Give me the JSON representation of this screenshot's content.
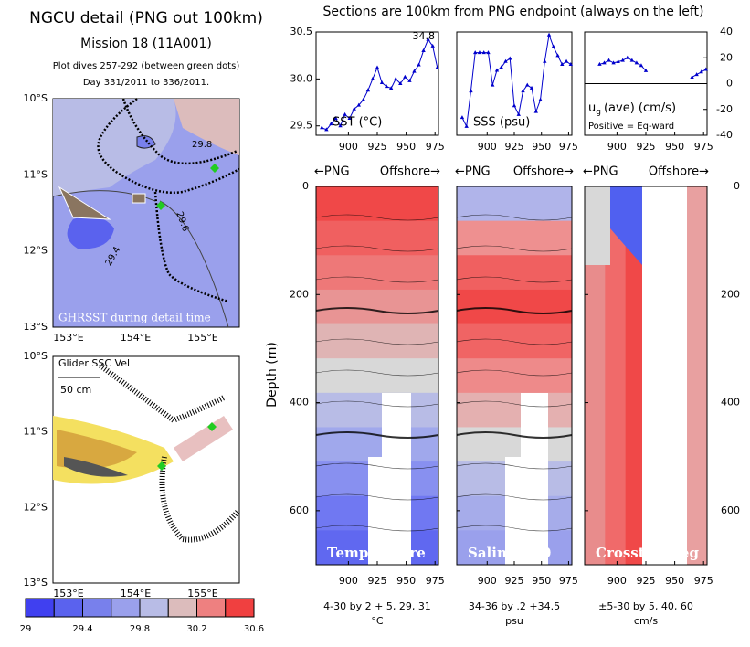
{
  "header": {
    "title": "NGCU detail (PNG out 100km)",
    "mission": "Mission 18 (11A001)",
    "dives": "Plot dives 257-292 (between green dots)",
    "days": "Day 331/2011 to 336/2011.",
    "section_title": "Sections are 100km from PNG endpoint (always on the left)"
  },
  "maps": {
    "lat_labels": [
      "10°S",
      "11°S",
      "12°S",
      "13°S"
    ],
    "lon_labels": [
      "153°E",
      "154°E",
      "155°E"
    ],
    "contour_labels": [
      "29.8",
      "29.6",
      "29.4"
    ],
    "sst_caption": "GHRSST during detail time",
    "vel_caption": "Glider SSC Vel",
    "vel_scale": "50 cm"
  },
  "colorbar": {
    "ticks": [
      29,
      29.4,
      29.8,
      30.2,
      30.6
    ],
    "colors": [
      "#4040f0",
      "#5a62ee",
      "#7880ec",
      "#9aa0ec",
      "#b8bce6",
      "#dcbcbc",
      "#ee8080",
      "#f04040"
    ]
  },
  "chart_data": [
    {
      "type": "line",
      "label": "SST (°C)",
      "annotation": "34.8",
      "color": "#0000cc",
      "x": [
        877,
        881,
        885,
        889,
        893,
        897,
        901,
        905,
        909,
        913,
        917,
        921,
        925,
        929,
        933,
        937,
        941,
        945,
        949,
        953,
        957,
        961,
        965,
        969,
        973,
        977
      ],
      "values": [
        29.48,
        29.46,
        29.52,
        29.58,
        29.5,
        29.62,
        29.58,
        29.68,
        29.72,
        29.78,
        29.88,
        30.0,
        30.12,
        29.96,
        29.92,
        29.9,
        30.0,
        29.95,
        30.02,
        29.98,
        30.08,
        30.15,
        30.3,
        30.42,
        30.35,
        30.12
      ],
      "xlim": [
        872,
        978
      ],
      "xticks": [
        900,
        925,
        950,
        975
      ],
      "ylim": [
        29.4,
        30.5
      ],
      "yticks": [
        29.5,
        {
          "value": 30,
          "label": "30.0"
        },
        30.5
      ],
      "yaxis": "left"
    },
    {
      "type": "line",
      "label": "SSS (psu)",
      "color": "#0000cc",
      "x": [
        877,
        881,
        885,
        889,
        893,
        897,
        901,
        905,
        909,
        913,
        917,
        921,
        925,
        929,
        933,
        937,
        941,
        945,
        949,
        953,
        957,
        961,
        965,
        969,
        973,
        977
      ],
      "values": [
        34.36,
        34.33,
        34.45,
        34.58,
        34.58,
        34.58,
        34.58,
        34.47,
        34.52,
        34.53,
        34.55,
        34.56,
        34.4,
        34.37,
        34.45,
        34.47,
        34.46,
        34.38,
        34.42,
        34.55,
        34.64,
        34.6,
        34.57,
        34.54,
        34.55,
        34.54
      ],
      "xlim": [
        872,
        978
      ],
      "xticks": [
        900,
        925,
        950,
        975
      ],
      "ylim": [
        34.3,
        34.65
      ],
      "yticks": [],
      "yaxis": "left"
    },
    {
      "type": "line",
      "label": "u",
      "label_sub": "g",
      "label_rest": "(ave) (cm/s)",
      "note": "Positive = Eq-ward",
      "color": "#0000cc",
      "x": [
        877,
        881,
        885,
        889,
        893,
        897,
        901,
        905,
        909,
        913,
        917,
        921,
        925,
        929,
        933,
        937,
        941,
        945,
        949,
        953,
        957,
        961,
        965,
        969,
        973,
        977
      ],
      "values": [
        null,
        null,
        15,
        16,
        18,
        16,
        17,
        18,
        20,
        18,
        16,
        14,
        10,
        null,
        null,
        null,
        null,
        null,
        null,
        null,
        null,
        null,
        5,
        7,
        9,
        11
      ],
      "xlim": [
        872,
        978
      ],
      "xticks": [
        900,
        925,
        950,
        975
      ],
      "ylim": [
        -40,
        40
      ],
      "yticks": [
        -40,
        -20,
        0,
        20,
        40
      ],
      "yaxis": "right"
    },
    {
      "type": "section",
      "head_left": "←PNG",
      "head_right": "Offshore→",
      "caption": "Temperature",
      "note": "4-30 by 2 + 5, 29, 31",
      "unit": "°C",
      "ylabel": "Depth (m)",
      "orientation": "horizontal",
      "colors": [
        "#f04848",
        "#f06060",
        "#ee7878",
        "#e89494",
        "#dfb4b4",
        "#d8d8d8",
        "#b8bce6",
        "#a0a8ec",
        "#8890f0",
        "#7078f2",
        "#6068f0"
      ],
      "xlim": [
        872,
        978
      ],
      "xticks": [
        900,
        925,
        950,
        975
      ],
      "ylim": [
        0,
        700
      ],
      "yticks": [
        0,
        200,
        400,
        600
      ],
      "yaxis": "left"
    },
    {
      "type": "section",
      "head_left": "←PNG",
      "head_right": "Offshore→",
      "caption": "Salinity-30",
      "note": "34-36 by .2 +34.5",
      "unit": "psu",
      "orientation": "horizontal",
      "colors": [
        "#b0b4ea",
        "#ee9090",
        "#f06060",
        "#f04848",
        "#f06464",
        "#ee8a8a",
        "#e4b0b0",
        "#d8d8d8",
        "#b8bce6",
        "#a6acea",
        "#9aa0ec"
      ],
      "xlim": [
        872,
        978
      ],
      "xticks": [
        900,
        925,
        950,
        975
      ],
      "ylim": [
        0,
        700
      ],
      "yticks": [
        0,
        200,
        400,
        600
      ],
      "yaxis": "none"
    },
    {
      "type": "section",
      "head_left": "←PNG",
      "head_right": "Offshore→",
      "caption": "Crossthalweg",
      "note": "±5-30 by 5, 40, 60",
      "unit": "cm/s",
      "orientation": "vertical",
      "colors": [
        "#e88c8c",
        "#f06a6a",
        "#f04848",
        "#f05858",
        "#ee7878",
        "#e8a0a0"
      ],
      "xlim": [
        872,
        978
      ],
      "xticks": [
        900,
        925,
        950,
        975
      ],
      "ylim": [
        0,
        700
      ],
      "yticks": [
        0,
        200,
        400,
        600
      ],
      "yaxis": "right"
    }
  ]
}
